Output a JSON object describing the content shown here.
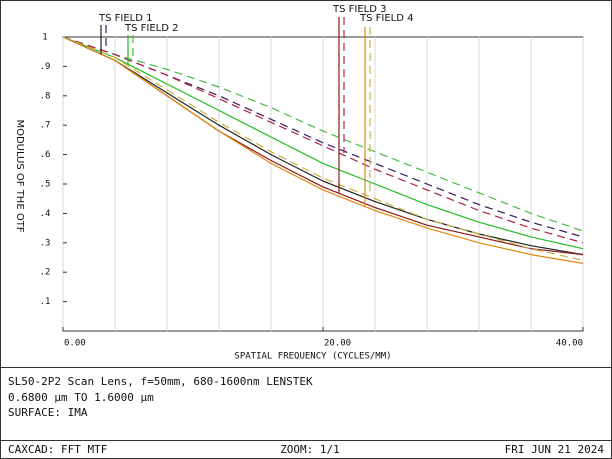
{
  "chart_data": {
    "type": "line",
    "y_label": "MODULUS OF THE OTF",
    "x_label": "SPATIAL FREQUENCY (CYCLES/MM)",
    "x": [
      0,
      4,
      8,
      12,
      16,
      20,
      24,
      28,
      32,
      36,
      40
    ],
    "xlim": [
      0,
      40
    ],
    "xticks": [
      {
        "value": 0,
        "label": "0.00"
      },
      {
        "value": 20,
        "label": "20.00"
      },
      {
        "value": 40,
        "label": "40.00"
      }
    ],
    "x_grid": [
      0,
      4,
      8,
      12,
      16,
      20,
      24,
      28,
      32,
      36,
      40
    ],
    "ylim": [
      0,
      1
    ],
    "yticks": [
      {
        "value": 0.1,
        "label": ".1"
      },
      {
        "value": 0.2,
        "label": ".2"
      },
      {
        "value": 0.3,
        "label": ".3"
      },
      {
        "value": 0.4,
        "label": ".4"
      },
      {
        "value": 0.5,
        "label": ".5"
      },
      {
        "value": 0.6,
        "label": ".6"
      },
      {
        "value": 0.7,
        "label": ".7"
      },
      {
        "value": 0.8,
        "label": ".8"
      },
      {
        "value": 0.9,
        "label": ".9"
      },
      1
    ],
    "fields": [
      {
        "label": "TS FIELD 1",
        "color": "#222222",
        "sagittal_color": "#3a1a5a",
        "tangential": [
          1,
          0.92,
          0.81,
          0.7,
          0.6,
          0.51,
          0.44,
          0.38,
          0.33,
          0.29,
          0.26
        ],
        "sagittal": [
          1,
          0.94,
          0.87,
          0.8,
          0.72,
          0.64,
          0.57,
          0.5,
          0.43,
          0.37,
          0.32
        ]
      },
      {
        "label": "TS FIELD 2",
        "color": "#22bb22",
        "sagittal_color": "#44bb44",
        "tangential": [
          1,
          0.93,
          0.84,
          0.75,
          0.66,
          0.57,
          0.5,
          0.43,
          0.37,
          0.32,
          0.28
        ],
        "sagittal": [
          1,
          0.94,
          0.89,
          0.83,
          0.76,
          0.68,
          0.61,
          0.54,
          0.47,
          0.4,
          0.34
        ]
      },
      {
        "label": "TS FIELD 3",
        "color": "#8b1a1a",
        "sagittal_color": "#b0204a",
        "tangential": [
          1,
          0.92,
          0.8,
          0.68,
          0.58,
          0.49,
          0.42,
          0.36,
          0.32,
          0.28,
          0.26
        ],
        "sagittal": [
          1,
          0.94,
          0.87,
          0.79,
          0.71,
          0.63,
          0.55,
          0.48,
          0.41,
          0.35,
          0.3
        ]
      },
      {
        "label": "TS FIELD 4",
        "color": "#e08a10",
        "sagittal_color": "#c8b040",
        "tangential": [
          1,
          0.92,
          0.8,
          0.68,
          0.57,
          0.48,
          0.41,
          0.35,
          0.3,
          0.26,
          0.23
        ],
        "sagittal": [
          1,
          0.93,
          0.82,
          0.71,
          0.61,
          0.52,
          0.45,
          0.38,
          0.33,
          0.28,
          0.24
        ]
      }
    ],
    "info": [
      "SL50-2P2 Scan Lens, f=50mm, 680-1600nm LENSTEK",
      "0.6800 µm TO 1.6000 µm",
      "SURFACE: IMA"
    ],
    "footer": {
      "left": "CAXCAD: FFT MTF",
      "center": "ZOOM: 1/1",
      "right": "FRI JUN 21 2024"
    }
  }
}
